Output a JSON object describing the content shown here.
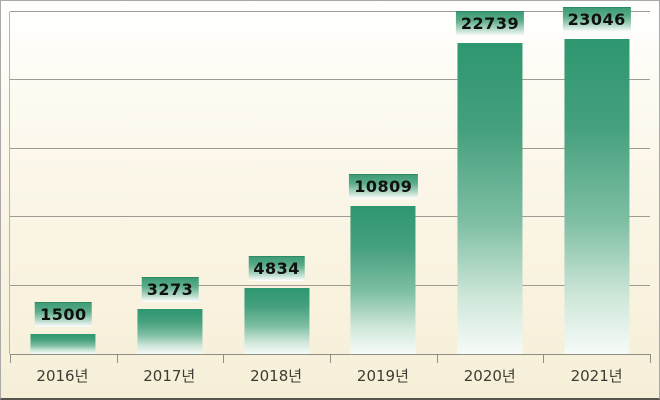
{
  "chart_data": {
    "type": "bar",
    "title": "",
    "xlabel": "",
    "ylabel": "",
    "categories": [
      "2016년",
      "2017년",
      "2018년",
      "2019년",
      "2020년",
      "2021년"
    ],
    "values": [
      1500,
      3273,
      4834,
      10809,
      22739,
      23046
    ],
    "ylim": [
      0,
      25000
    ],
    "gridline_step": 5000,
    "gridlines_at": [
      5000,
      10000,
      15000,
      20000,
      25000
    ],
    "y_axis_labels_visible": false,
    "grid": true,
    "legend": "none",
    "bar_width_fraction": 0.61,
    "colors": {
      "bar_top": "#2e9770",
      "bar_mid": "#7fbfa4",
      "bar_bottom": "#f6fbf8",
      "label_box_top": "#3e9c77",
      "label_box_bottom": "#ffffff",
      "label_box_edge": "#2e8a64",
      "value_text": "#101010",
      "year_text": "#3c3c33",
      "gridline": "#9c9c94",
      "axis": "#8e8e86",
      "background_top": "#fffffe",
      "background_bottom": "#f6efd8",
      "outer_border": "#a9a9a9",
      "outer_border_bottom": "#56544d"
    }
  }
}
